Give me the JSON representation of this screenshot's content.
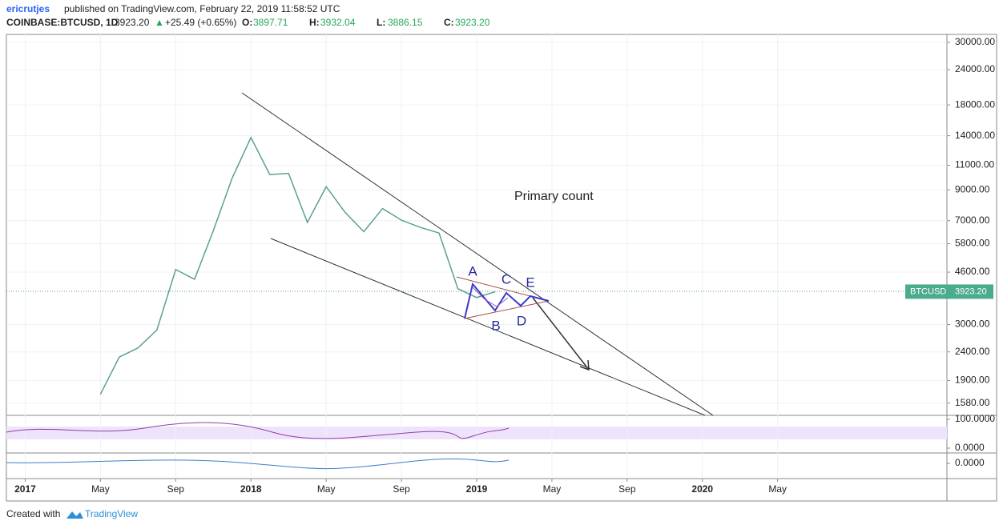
{
  "header": {
    "author": "ericrutjes",
    "published": "published on TradingView.com, February 22, 2019 11:58:52 UTC",
    "symbol": "COINBASE:BTCUSD, 1D",
    "last": "3923.20",
    "arrow": "▲",
    "change": "+25.49 (+0.65%)",
    "ohlc": [
      {
        "label": "O:",
        "value": "3897.71"
      },
      {
        "label": "H:",
        "value": "3932.04"
      },
      {
        "label": "L:",
        "value": "3886.15"
      },
      {
        "label": "C:",
        "value": "3923.20"
      }
    ]
  },
  "chart_data": {
    "type": "line",
    "log_scale": true,
    "grid": true,
    "x": [
      "2017-05",
      "2017-06",
      "2017-07",
      "2017-08",
      "2017-09",
      "2017-10",
      "2017-11",
      "2017-12",
      "2018-01",
      "2018-02",
      "2018-03",
      "2018-04",
      "2018-05",
      "2018-06",
      "2018-07",
      "2018-08",
      "2018-09",
      "2018-10",
      "2018-11",
      "2018-12",
      "2019-01",
      "2019-02"
    ],
    "series": [
      {
        "name": "BTCUSD",
        "color": "#5b9e93",
        "values": [
          1700,
          2300,
          2480,
          2870,
          4700,
          4340,
          6450,
          9900,
          13800,
          10200,
          10300,
          6900,
          9240,
          7500,
          6400,
          7730,
          7030,
          6630,
          6330,
          4020,
          3740,
          3923.2
        ]
      }
    ],
    "xlim": [
      "2016-12",
      "2021-02"
    ],
    "xticks": [
      {
        "value": "2017-01",
        "label": "2017"
      },
      {
        "value": "2017-05",
        "label": "May"
      },
      {
        "value": "2017-09",
        "label": "Sep"
      },
      {
        "value": "2018-01",
        "label": "2018"
      },
      {
        "value": "2018-05",
        "label": "May"
      },
      {
        "value": "2018-09",
        "label": "Sep"
      },
      {
        "value": "2019-01",
        "label": "2019"
      },
      {
        "value": "2019-05",
        "label": "May"
      },
      {
        "value": "2019-09",
        "label": "Sep"
      },
      {
        "value": "2020-01",
        "label": "2020"
      },
      {
        "value": "2020-05",
        "label": "May"
      }
    ],
    "ylim": [
      1430,
      32000
    ],
    "yticks": [
      {
        "value": 1580,
        "label": "1580.00"
      },
      {
        "value": 1900,
        "label": "1900.00"
      },
      {
        "value": 2400,
        "label": "2400.00"
      },
      {
        "value": 3000,
        "label": "3000.00"
      },
      {
        "value": 4600,
        "label": "4600.00"
      },
      {
        "value": 5800,
        "label": "5800.00"
      },
      {
        "value": 7000,
        "label": "7000.00"
      },
      {
        "value": 9000,
        "label": "9000.00"
      },
      {
        "value": 11000,
        "label": "11000.00"
      },
      {
        "value": 14000,
        "label": "14000.00"
      },
      {
        "value": 18000,
        "label": "18000.00"
      },
      {
        "value": 24000,
        "label": "24000.00"
      },
      {
        "value": 30000,
        "label": "30000.00"
      }
    ],
    "price_tag": {
      "name": "BTCUSD",
      "value": 3923.2,
      "label": "3923.20"
    },
    "annotations": [
      "Primary count",
      "A",
      "B",
      "C",
      "D",
      "E"
    ],
    "rsi_ticks": [
      {
        "value": 100,
        "label": "100.0000"
      },
      {
        "value": 0,
        "label": "0.0000"
      }
    ],
    "macd_ticks": [
      {
        "value": 0,
        "label": "0.0000"
      }
    ]
  },
  "footer": {
    "text": "Created with",
    "brand": "TradingView"
  }
}
